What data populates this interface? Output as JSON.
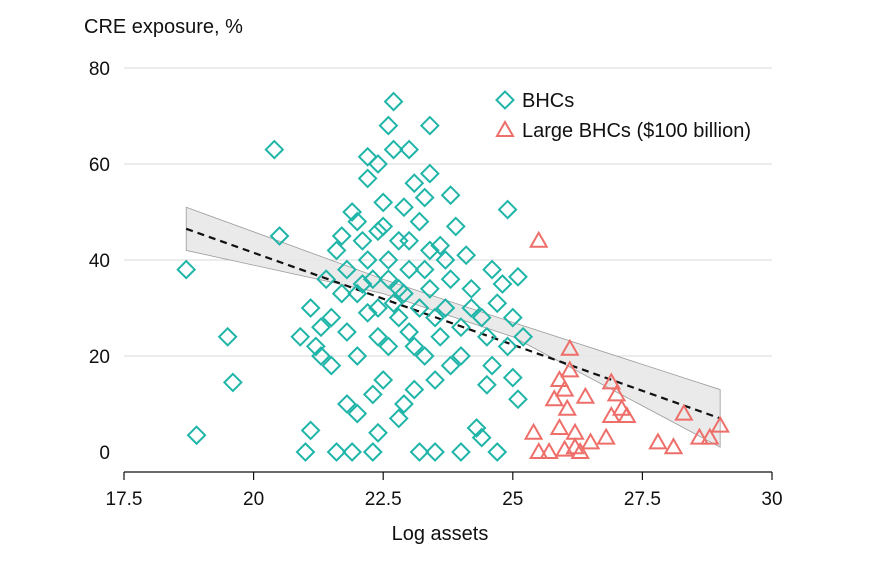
{
  "chart_data": {
    "type": "scatter",
    "title": "",
    "ylabel": "CRE exposure, %",
    "xlabel": "Log assets",
    "xlim": [
      17.5,
      30
    ],
    "ylim": [
      -3,
      80
    ],
    "xticks": [
      17.5,
      20,
      22.5,
      25,
      27.5,
      30
    ],
    "xtick_labels": [
      "17.5",
      "20",
      "22.5",
      "25",
      "27.5",
      "30"
    ],
    "yticks": [
      0,
      20,
      40,
      60,
      80
    ],
    "ytick_labels": [
      "0",
      "20",
      "40",
      "60",
      "80"
    ],
    "grid": "horizontal",
    "legend_position": "top-right",
    "colors": {
      "bhc": "#1fb5a8",
      "large": "#ee6e6a",
      "fit": "#111111",
      "band": "#e6e6e6"
    },
    "series": [
      {
        "name": "BHCs",
        "marker": "diamond",
        "points": [
          [
            18.7,
            38
          ],
          [
            18.9,
            3.5
          ],
          [
            19.5,
            24
          ],
          [
            19.6,
            14.5
          ],
          [
            20.4,
            63
          ],
          [
            20.5,
            45
          ],
          [
            20.9,
            24
          ],
          [
            21.0,
            0
          ],
          [
            21.1,
            30
          ],
          [
            21.1,
            4.5
          ],
          [
            21.2,
            22
          ],
          [
            21.3,
            20
          ],
          [
            21.4,
            36
          ],
          [
            21.5,
            28
          ],
          [
            21.6,
            42
          ],
          [
            21.6,
            0
          ],
          [
            21.7,
            33
          ],
          [
            21.8,
            25
          ],
          [
            21.8,
            10
          ],
          [
            21.9,
            50
          ],
          [
            21.9,
            0
          ],
          [
            22.0,
            48
          ],
          [
            22.0,
            20
          ],
          [
            22.0,
            8
          ],
          [
            22.1,
            35
          ],
          [
            22.2,
            61.5
          ],
          [
            22.2,
            57
          ],
          [
            22.2,
            40
          ],
          [
            22.3,
            12
          ],
          [
            22.3,
            0
          ],
          [
            22.4,
            60
          ],
          [
            22.4,
            46
          ],
          [
            22.4,
            30
          ],
          [
            22.4,
            4
          ],
          [
            22.5,
            52
          ],
          [
            22.5,
            15
          ],
          [
            22.6,
            68
          ],
          [
            22.6,
            36
          ],
          [
            22.6,
            22
          ],
          [
            22.7,
            73
          ],
          [
            22.7,
            63
          ],
          [
            22.8,
            44
          ],
          [
            22.8,
            28
          ],
          [
            22.8,
            7
          ],
          [
            22.9,
            51
          ],
          [
            22.9,
            10
          ],
          [
            23.0,
            63
          ],
          [
            23.0,
            38
          ],
          [
            23.0,
            25
          ],
          [
            23.1,
            56
          ],
          [
            23.1,
            13
          ],
          [
            23.2,
            48
          ],
          [
            23.2,
            0
          ],
          [
            23.3,
            53
          ],
          [
            23.3,
            20
          ],
          [
            23.4,
            68
          ],
          [
            23.4,
            58
          ],
          [
            23.4,
            34
          ],
          [
            23.5,
            15
          ],
          [
            23.5,
            0
          ],
          [
            23.6,
            43
          ],
          [
            23.7,
            30
          ],
          [
            23.8,
            53.5
          ],
          [
            23.8,
            18
          ],
          [
            23.9,
            47
          ],
          [
            24.0,
            26
          ],
          [
            24.0,
            0
          ],
          [
            24.1,
            41
          ],
          [
            24.2,
            34
          ],
          [
            24.3,
            5
          ],
          [
            24.4,
            28
          ],
          [
            24.4,
            3
          ],
          [
            24.5,
            24
          ],
          [
            24.6,
            38
          ],
          [
            24.6,
            18
          ],
          [
            24.7,
            31
          ],
          [
            24.7,
            0
          ],
          [
            24.8,
            35
          ],
          [
            24.9,
            50.5
          ],
          [
            24.9,
            22
          ],
          [
            25.0,
            28
          ],
          [
            25.0,
            15.5
          ],
          [
            25.1,
            36.5
          ],
          [
            25.1,
            11
          ],
          [
            25.2,
            24
          ],
          [
            21.5,
            18
          ],
          [
            21.3,
            26
          ],
          [
            22.0,
            33
          ],
          [
            22.2,
            29
          ],
          [
            22.4,
            24
          ],
          [
            22.6,
            40
          ],
          [
            22.8,
            34
          ],
          [
            23.0,
            44
          ],
          [
            23.2,
            30
          ],
          [
            23.4,
            42
          ],
          [
            23.6,
            24
          ],
          [
            23.8,
            36
          ],
          [
            24.0,
            20
          ],
          [
            21.8,
            38
          ],
          [
            22.1,
            44
          ],
          [
            22.5,
            47
          ],
          [
            22.9,
            33
          ],
          [
            23.3,
            38
          ],
          [
            23.7,
            40
          ],
          [
            24.2,
            30
          ],
          [
            21.7,
            45
          ],
          [
            22.3,
            36
          ],
          [
            22.7,
            31
          ],
          [
            23.1,
            22
          ],
          [
            23.5,
            28
          ],
          [
            24.5,
            14
          ]
        ]
      },
      {
        "name": "Large BHCs ($100 billion)",
        "marker": "triangle",
        "points": [
          [
            25.5,
            44
          ],
          [
            25.4,
            4
          ],
          [
            25.5,
            0
          ],
          [
            25.7,
            0
          ],
          [
            25.8,
            11
          ],
          [
            25.9,
            15
          ],
          [
            25.9,
            5
          ],
          [
            26.0,
            13
          ],
          [
            26.0,
            0.5
          ],
          [
            26.05,
            9
          ],
          [
            26.1,
            21.5
          ],
          [
            26.1,
            17
          ],
          [
            26.2,
            4
          ],
          [
            26.2,
            1
          ],
          [
            26.3,
            0
          ],
          [
            26.4,
            11.5
          ],
          [
            26.5,
            2
          ],
          [
            26.8,
            3
          ],
          [
            26.9,
            14.5
          ],
          [
            26.9,
            7.5
          ],
          [
            27.0,
            12
          ],
          [
            27.1,
            9
          ],
          [
            27.2,
            7.5
          ],
          [
            27.8,
            2
          ],
          [
            28.1,
            1
          ],
          [
            28.3,
            8
          ],
          [
            28.6,
            3
          ],
          [
            28.8,
            3
          ],
          [
            29.0,
            5.5
          ]
        ]
      }
    ],
    "fit_line": {
      "x": [
        18.7,
        29.0
      ],
      "y": [
        46.5,
        7
      ]
    },
    "confidence_band": {
      "x": [
        18.7,
        22.5,
        25.0,
        29.0
      ],
      "lower": [
        42,
        33,
        24,
        1
      ],
      "upper": [
        51,
        36,
        27,
        13
      ]
    }
  }
}
